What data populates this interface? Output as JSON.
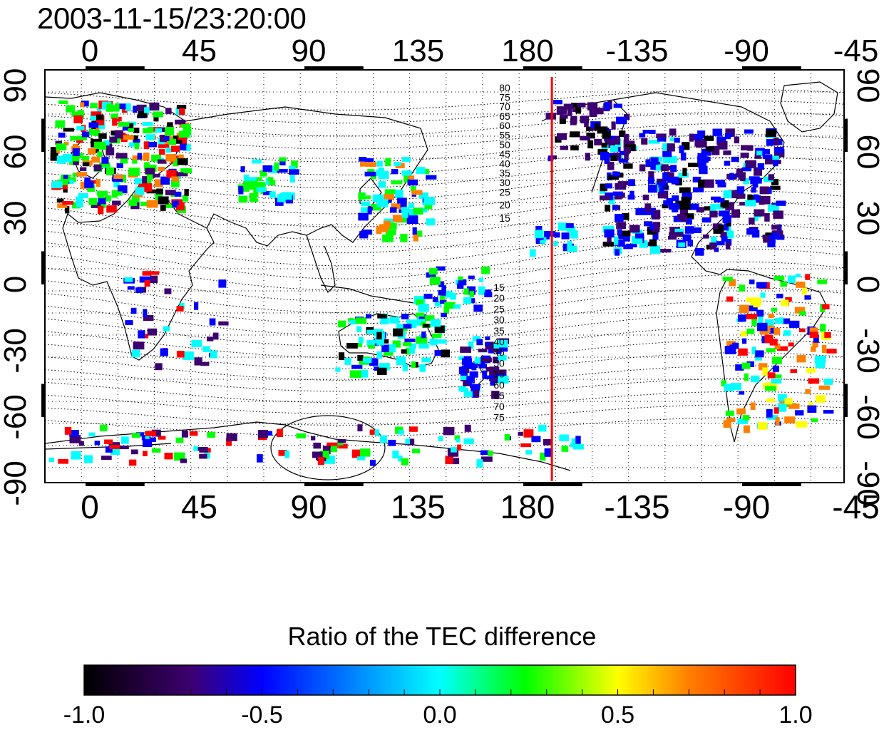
{
  "timestamp": "2003-11-15/23:20:00",
  "map": {
    "longitude_ticks": [
      "0",
      "45",
      "90",
      "135",
      "180",
      "-135",
      "-90",
      "-45"
    ],
    "latitude_ticks": [
      "90",
      "60",
      "30",
      "0",
      "-30",
      "-60",
      "-90"
    ],
    "marker_longitude": -170,
    "marker_color": "#ff0000",
    "contour_labels_north": [
      "80",
      "75",
      "70",
      "65",
      "60",
      "55",
      "50",
      "45",
      "40",
      "35",
      "30",
      "25",
      "20",
      "15"
    ],
    "contour_labels_south": [
      "15",
      "20",
      "25",
      "30",
      "35",
      "40",
      "45",
      "50",
      "55",
      "60",
      "65",
      "70",
      "75"
    ]
  },
  "colorbar": {
    "title": "Ratio of the TEC difference",
    "tick_labels": [
      "-1.0",
      "-0.5",
      "0.0",
      "0.5",
      "1.0"
    ],
    "colors": [
      "#000000",
      "#3d0070",
      "#0000ff",
      "#00ffff",
      "#00ff00",
      "#ffff00",
      "#ff7f00",
      "#ff0000"
    ]
  }
}
